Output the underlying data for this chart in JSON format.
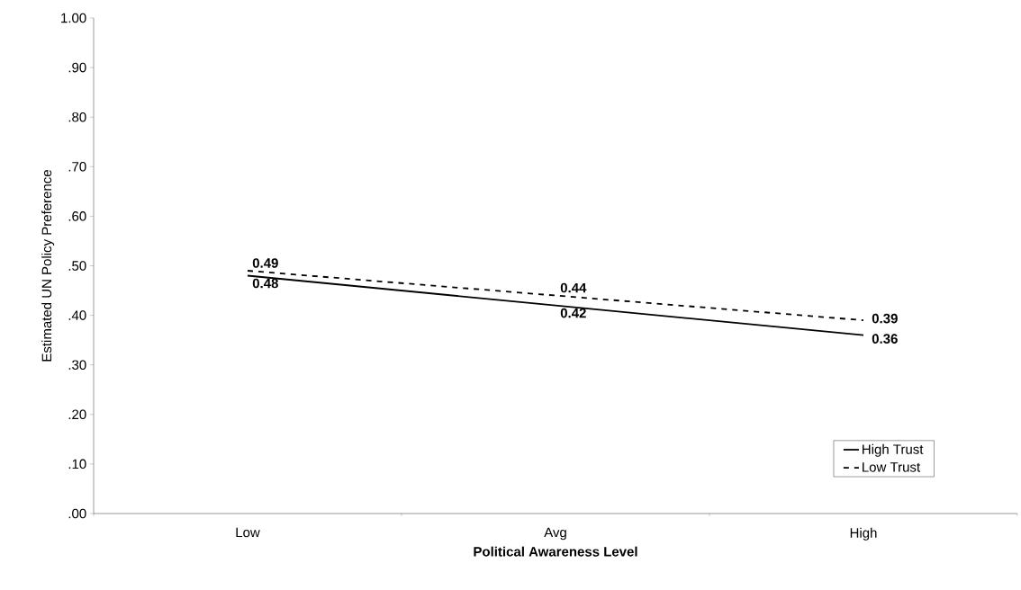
{
  "chart_data": {
    "type": "line",
    "xlabel": "Political Awareness Level",
    "ylabel": "Estimated UN Policy Preference",
    "categories": [
      "Low",
      "Avg",
      "High"
    ],
    "series": [
      {
        "name": "High Trust",
        "color": "#000000",
        "line_style": "solid",
        "values": [
          0.48,
          0.42,
          0.36
        ]
      },
      {
        "name": "Low Trust",
        "color": "#000000",
        "line_style": "dashed",
        "values": [
          0.49,
          0.44,
          0.39
        ]
      }
    ],
    "ylim": [
      0,
      1
    ],
    "yticks": [
      {
        "value": 0,
        "label": ".00"
      },
      {
        "value": 0.1,
        "label": ".10"
      },
      {
        "value": 0.2,
        "label": ".20"
      },
      {
        "value": 0.3,
        "label": ".30"
      },
      {
        "value": 0.4,
        "label": ".40"
      },
      {
        "value": 0.5,
        "label": ".50"
      },
      {
        "value": 0.6,
        "label": ".60"
      },
      {
        "value": 0.7,
        "label": ".70"
      },
      {
        "value": 0.8,
        "label": ".80"
      },
      {
        "value": 0.9,
        "label": ".90"
      },
      {
        "value": 1,
        "label": "1.00"
      }
    ],
    "grid": false,
    "legend": "bottom right",
    "data_labels": true
  }
}
